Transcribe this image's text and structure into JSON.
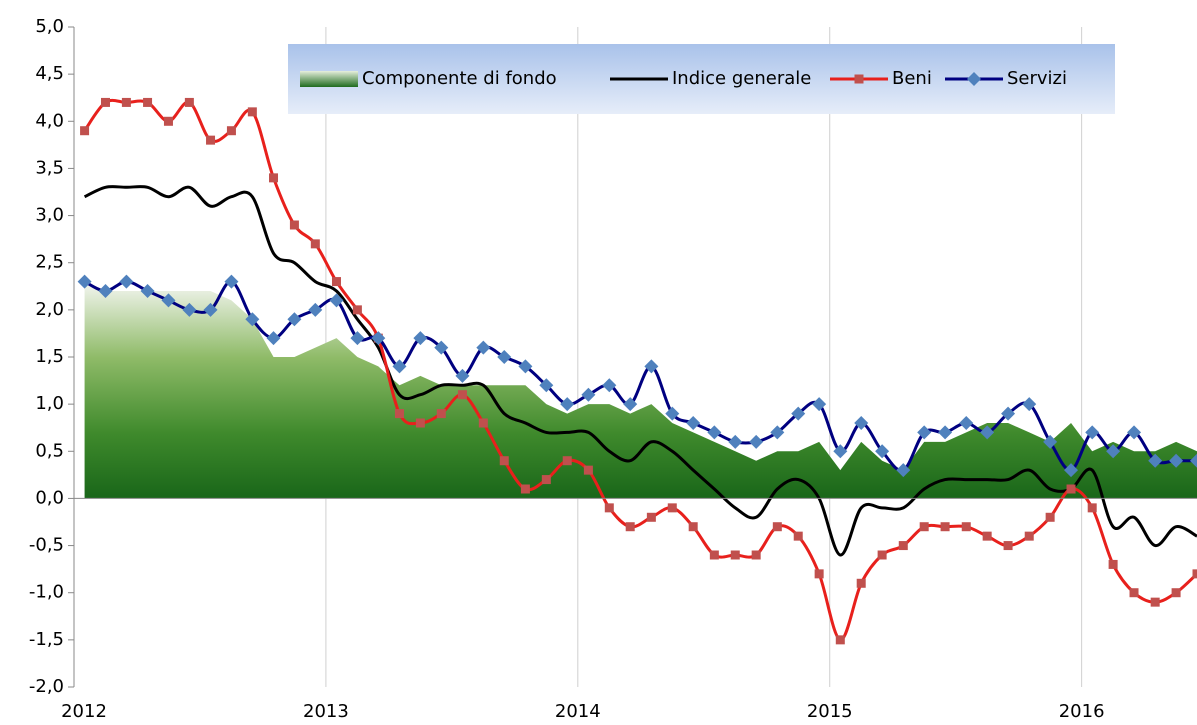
{
  "chart_data": {
    "type": "line",
    "x": [
      2012.042,
      2012.125,
      2012.208,
      2012.292,
      2012.375,
      2012.458,
      2012.542,
      2012.625,
      2012.708,
      2012.792,
      2012.875,
      2012.958,
      2013.042,
      2013.125,
      2013.208,
      2013.292,
      2013.375,
      2013.458,
      2013.542,
      2013.625,
      2013.708,
      2013.792,
      2013.875,
      2013.958,
      2014.042,
      2014.125,
      2014.208,
      2014.292,
      2014.375,
      2014.458,
      2014.542,
      2014.625,
      2014.708,
      2014.792,
      2014.875,
      2014.958,
      2015.042,
      2015.125,
      2015.208,
      2015.292,
      2015.375,
      2015.458,
      2015.542,
      2015.625,
      2015.708,
      2015.792,
      2015.875,
      2015.958,
      2016.042,
      2016.125,
      2016.208,
      2016.292,
      2016.375,
      2016.458
    ],
    "series": [
      {
        "name": "Componente di fondo",
        "type": "area",
        "color": "#1e6b1e",
        "values": [
          2.3,
          2.2,
          2.2,
          2.2,
          2.2,
          2.2,
          2.2,
          2.1,
          1.9,
          1.5,
          1.5,
          1.6,
          1.7,
          1.5,
          1.4,
          1.2,
          1.3,
          1.2,
          1.2,
          1.2,
          1.2,
          1.2,
          1.0,
          0.9,
          1.0,
          1.0,
          0.9,
          1.0,
          0.8,
          0.7,
          0.6,
          0.5,
          0.4,
          0.5,
          0.5,
          0.6,
          0.3,
          0.6,
          0.4,
          0.3,
          0.6,
          0.6,
          0.7,
          0.8,
          0.8,
          0.7,
          0.6,
          0.8,
          0.5,
          0.6,
          0.5,
          0.5,
          0.6,
          0.5
        ]
      },
      {
        "name": "Indice generale",
        "type": "line",
        "color": "#000000",
        "smooth": true,
        "values": [
          3.2,
          3.3,
          3.3,
          3.3,
          3.2,
          3.3,
          3.1,
          3.2,
          3.2,
          2.6,
          2.5,
          2.3,
          2.2,
          1.9,
          1.6,
          1.1,
          1.1,
          1.2,
          1.2,
          1.2,
          0.9,
          0.8,
          0.7,
          0.7,
          0.7,
          0.5,
          0.4,
          0.6,
          0.5,
          0.3,
          0.1,
          -0.1,
          -0.2,
          0.1,
          0.2,
          0.0,
          -0.6,
          -0.1,
          -0.1,
          -0.1,
          0.1,
          0.2,
          0.2,
          0.2,
          0.2,
          0.3,
          0.1,
          0.1,
          0.3,
          -0.3,
          -0.2,
          -0.5,
          -0.3,
          -0.4
        ]
      },
      {
        "name": "Beni",
        "type": "line",
        "color": "#e8201c",
        "marker": "square",
        "marker_color": "#c0504d",
        "smooth": true,
        "values": [
          3.9,
          4.2,
          4.2,
          4.2,
          4.0,
          4.2,
          3.8,
          3.9,
          4.1,
          3.4,
          2.9,
          2.7,
          2.3,
          2.0,
          1.7,
          0.9,
          0.8,
          0.9,
          1.1,
          0.8,
          0.4,
          0.1,
          0.2,
          0.4,
          0.3,
          -0.1,
          -0.3,
          -0.2,
          -0.1,
          -0.3,
          -0.6,
          -0.6,
          -0.6,
          -0.3,
          -0.4,
          -0.8,
          -1.5,
          -0.9,
          -0.6,
          -0.5,
          -0.3,
          -0.3,
          -0.3,
          -0.4,
          -0.5,
          -0.4,
          -0.2,
          0.1,
          -0.1,
          -0.7,
          -1.0,
          -1.1,
          -1.0,
          -0.8
        ]
      },
      {
        "name": "Servizi",
        "type": "line",
        "color": "#000080",
        "marker": "diamond",
        "marker_color": "#4f81bd",
        "smooth": true,
        "values": [
          2.3,
          2.2,
          2.3,
          2.2,
          2.1,
          2.0,
          2.0,
          2.3,
          1.9,
          1.7,
          1.9,
          2.0,
          2.1,
          1.7,
          1.7,
          1.4,
          1.7,
          1.6,
          1.3,
          1.6,
          1.5,
          1.4,
          1.2,
          1.0,
          1.1,
          1.2,
          1.0,
          1.4,
          0.9,
          0.8,
          0.7,
          0.6,
          0.6,
          0.7,
          0.9,
          1.0,
          0.5,
          0.8,
          0.5,
          0.3,
          0.7,
          0.7,
          0.8,
          0.7,
          0.9,
          1.0,
          0.6,
          0.3,
          0.7,
          0.5,
          0.7,
          0.4,
          0.4,
          0.4
        ]
      }
    ],
    "xlim": [
      2012,
      2016.458
    ],
    "xticks": [
      2012,
      2013,
      2014,
      2015,
      2016
    ],
    "ylim": [
      -2,
      5
    ],
    "yticks": [
      {
        "value": -2,
        "label": "-2,0"
      },
      {
        "value": -1.5,
        "label": "-1,5"
      },
      {
        "value": -1,
        "label": "-1,0"
      },
      {
        "value": -0.5,
        "label": "-0,5"
      },
      {
        "value": 0,
        "label": "0,0"
      },
      {
        "value": 0.5,
        "label": "0,5"
      },
      {
        "value": 1,
        "label": "1,0"
      },
      {
        "value": 1.5,
        "label": "1,5"
      },
      {
        "value": 2,
        "label": "2,0"
      },
      {
        "value": 2.5,
        "label": "2,5"
      },
      {
        "value": 3,
        "label": "3,0"
      },
      {
        "value": 3.5,
        "label": "3,5"
      },
      {
        "value": 4,
        "label": "4,0"
      },
      {
        "value": 4.5,
        "label": "4,5"
      },
      {
        "value": 5,
        "label": "5,0"
      }
    ],
    "grid": "x",
    "legend": "top"
  }
}
